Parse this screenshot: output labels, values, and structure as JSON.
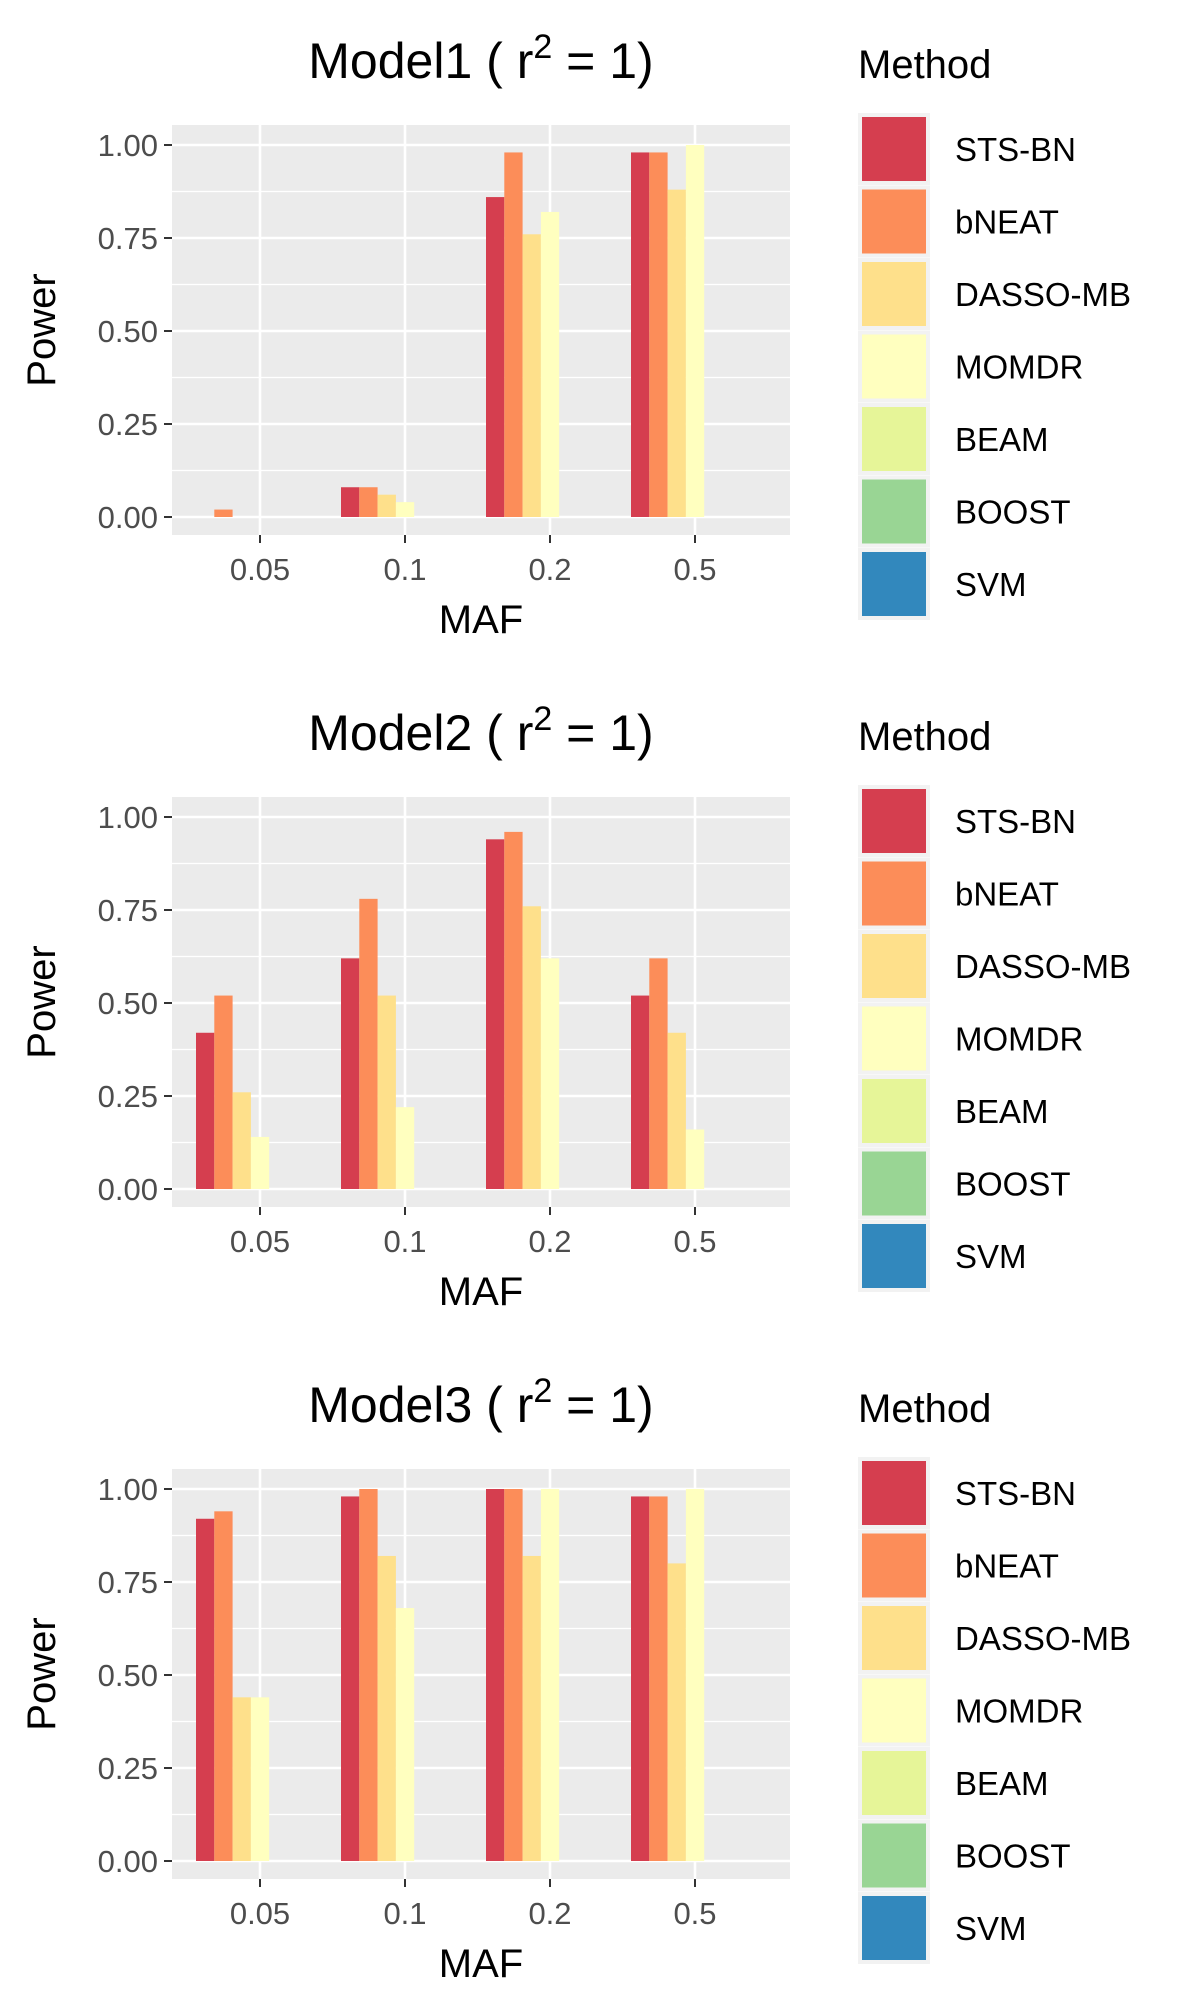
{
  "legend_title": "Method",
  "methods": [
    {
      "name": "STS-BN",
      "color": "#D53E4F"
    },
    {
      "name": "bNEAT",
      "color": "#FC8D59"
    },
    {
      "name": "DASSO-MB",
      "color": "#FEE08B"
    },
    {
      "name": "MOMDR",
      "color": "#FFFFBF"
    },
    {
      "name": "BEAM",
      "color": "#E6F598"
    },
    {
      "name": "BOOST",
      "color": "#99D594"
    },
    {
      "name": "SVM",
      "color": "#3288BD"
    }
  ],
  "chart_data": [
    {
      "type": "bar",
      "title": "Model1 ( r² = 1)",
      "title_main": "Model1 ( r",
      "title_sup": "2",
      "title_tail": " = 1)",
      "xlabel": "MAF",
      "ylabel": "Power",
      "categories": [
        "0.05",
        "0.1",
        "0.2",
        "0.5"
      ],
      "ylim": [
        0,
        1
      ],
      "yticks": [
        "0.00",
        "0.25",
        "0.50",
        "0.75",
        "1.00"
      ],
      "grid": true,
      "legend": "right",
      "series": [
        {
          "name": "STS-BN",
          "values": [
            0.0,
            0.08,
            0.86,
            0.98
          ]
        },
        {
          "name": "bNEAT",
          "values": [
            0.02,
            0.08,
            0.98,
            0.98
          ]
        },
        {
          "name": "DASSO-MB",
          "values": [
            0.0,
            0.06,
            0.76,
            0.88
          ]
        },
        {
          "name": "MOMDR",
          "values": [
            0.0,
            0.04,
            0.82,
            1.0
          ]
        },
        {
          "name": "BEAM",
          "values": [
            0,
            0,
            0,
            0
          ]
        },
        {
          "name": "BOOST",
          "values": [
            0,
            0,
            0,
            0
          ]
        },
        {
          "name": "SVM",
          "values": [
            0,
            0,
            0,
            0
          ]
        }
      ]
    },
    {
      "type": "bar",
      "title": "Model2 ( r² = 1)",
      "title_main": "Model2 ( r",
      "title_sup": "2",
      "title_tail": " = 1)",
      "xlabel": "MAF",
      "ylabel": "Power",
      "categories": [
        "0.05",
        "0.1",
        "0.2",
        "0.5"
      ],
      "ylim": [
        0,
        1
      ],
      "yticks": [
        "0.00",
        "0.25",
        "0.50",
        "0.75",
        "1.00"
      ],
      "grid": true,
      "legend": "right",
      "series": [
        {
          "name": "STS-BN",
          "values": [
            0.42,
            0.62,
            0.94,
            0.52
          ]
        },
        {
          "name": "bNEAT",
          "values": [
            0.52,
            0.78,
            0.96,
            0.62
          ]
        },
        {
          "name": "DASSO-MB",
          "values": [
            0.26,
            0.52,
            0.76,
            0.42
          ]
        },
        {
          "name": "MOMDR",
          "values": [
            0.14,
            0.22,
            0.62,
            0.16
          ]
        },
        {
          "name": "BEAM",
          "values": [
            0,
            0,
            0,
            0
          ]
        },
        {
          "name": "BOOST",
          "values": [
            0,
            0,
            0,
            0
          ]
        },
        {
          "name": "SVM",
          "values": [
            0,
            0,
            0,
            0
          ]
        }
      ]
    },
    {
      "type": "bar",
      "title": "Model3 ( r² = 1)",
      "title_main": "Model3 ( r",
      "title_sup": "2",
      "title_tail": " = 1)",
      "xlabel": "MAF",
      "ylabel": "Power",
      "categories": [
        "0.05",
        "0.1",
        "0.2",
        "0.5"
      ],
      "ylim": [
        0,
        1
      ],
      "yticks": [
        "0.00",
        "0.25",
        "0.50",
        "0.75",
        "1.00"
      ],
      "grid": true,
      "legend": "right",
      "series": [
        {
          "name": "STS-BN",
          "values": [
            0.92,
            0.98,
            1.0,
            0.98
          ]
        },
        {
          "name": "bNEAT",
          "values": [
            0.94,
            1.0,
            1.0,
            0.98
          ]
        },
        {
          "name": "DASSO-MB",
          "values": [
            0.44,
            0.82,
            0.82,
            0.8
          ]
        },
        {
          "name": "MOMDR",
          "values": [
            0.44,
            0.68,
            1.0,
            1.0
          ]
        },
        {
          "name": "BEAM",
          "values": [
            0,
            0,
            0,
            0
          ]
        },
        {
          "name": "BOOST",
          "values": [
            0,
            0,
            0,
            0
          ]
        },
        {
          "name": "SVM",
          "values": [
            0,
            0,
            0,
            0
          ]
        }
      ]
    }
  ]
}
